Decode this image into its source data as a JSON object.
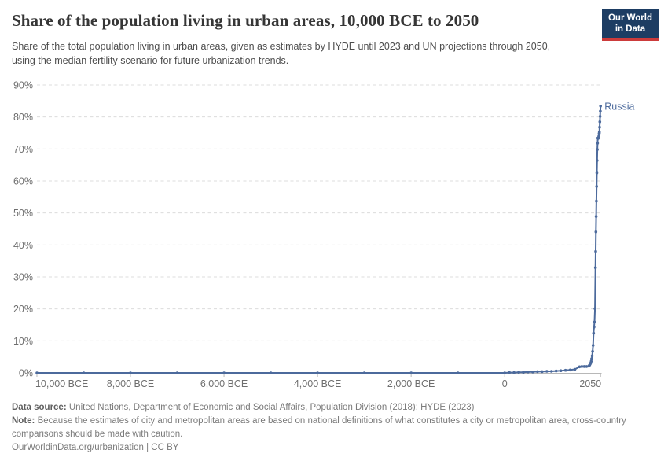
{
  "header": {
    "title": "Share of the population living in urban areas, 10,000 BCE to 2050",
    "subtitle": "Share of the total population living in urban areas, given as estimates by HYDE until 2023 and UN projections through 2050, using the median fertility scenario for future urbanization trends.",
    "logo": {
      "line1": "Our World",
      "line2": "in Data"
    }
  },
  "footer": {
    "source_label": "Data source:",
    "source_text": "United Nations, Department of Economic and Social Affairs, Population Division (2018); HYDE (2023)",
    "note_label": "Note:",
    "note_text": "Because the estimates of city and metropolitan areas are based on national definitions of what constitutes a city or metropolitan area, cross-country comparisons should be made with caution.",
    "license_line": "OurWorldinData.org/urbanization | CC BY"
  },
  "colors": {
    "line": "#4c6a9c",
    "title_color": "#363636",
    "subtitle_color": "#4e4e4e",
    "tick_label": "#6e6e6e",
    "grid": "#dcdcdc",
    "axis": "#b8b8b8",
    "footer_color": "#7b7b7b",
    "footer_bold_color": "#5f5f5f",
    "logo_bg": "#1d3d63",
    "logo_stripe": "#cc3b3b"
  },
  "chart_data": {
    "type": "line",
    "title": "Share of the population living in urban areas, 10,000 BCE to 2050",
    "xlabel": "",
    "ylabel": "",
    "xlim": [
      -10000,
      2050
    ],
    "ylim": [
      0,
      90
    ],
    "grid": true,
    "legend": "none",
    "y_ticks": [
      {
        "value": 0,
        "label": "0%"
      },
      {
        "value": 10,
        "label": "10%"
      },
      {
        "value": 20,
        "label": "20%"
      },
      {
        "value": 30,
        "label": "30%"
      },
      {
        "value": 40,
        "label": "40%"
      },
      {
        "value": 50,
        "label": "50%"
      },
      {
        "value": 60,
        "label": "60%"
      },
      {
        "value": 70,
        "label": "70%"
      },
      {
        "value": 80,
        "label": "80%"
      },
      {
        "value": 90,
        "label": "90%"
      }
    ],
    "x_ticks": [
      {
        "value": -10000,
        "label": "10,000 BCE",
        "align": "start"
      },
      {
        "value": -8000,
        "label": "8,000 BCE"
      },
      {
        "value": -6000,
        "label": "6,000 BCE"
      },
      {
        "value": -4000,
        "label": "4,000 BCE"
      },
      {
        "value": -2000,
        "label": "2,000 BCE"
      },
      {
        "value": 0,
        "label": "0"
      },
      {
        "value": 2050,
        "label": "2050",
        "dx": -13
      }
    ],
    "series": [
      {
        "name": "Russia",
        "points": [
          [
            -10000,
            0
          ],
          [
            -9000,
            0
          ],
          [
            -8000,
            0
          ],
          [
            -7000,
            0
          ],
          [
            -6000,
            0
          ],
          [
            -5000,
            0
          ],
          [
            -4000,
            0
          ],
          [
            -3000,
            0
          ],
          [
            -2000,
            0
          ],
          [
            -1000,
            0
          ],
          [
            0,
            0
          ],
          [
            100,
            0.1
          ],
          [
            200,
            0.1
          ],
          [
            300,
            0.2
          ],
          [
            400,
            0.2
          ],
          [
            500,
            0.3
          ],
          [
            600,
            0.3
          ],
          [
            700,
            0.4
          ],
          [
            800,
            0.4
          ],
          [
            900,
            0.5
          ],
          [
            1000,
            0.5
          ],
          [
            1100,
            0.6
          ],
          [
            1200,
            0.7
          ],
          [
            1300,
            0.8
          ],
          [
            1400,
            0.9
          ],
          [
            1500,
            1.1
          ],
          [
            1600,
            1.9
          ],
          [
            1650,
            2.0
          ],
          [
            1700,
            2.0
          ],
          [
            1750,
            2.0
          ],
          [
            1800,
            2.1
          ],
          [
            1810,
            2.3
          ],
          [
            1820,
            2.5
          ],
          [
            1830,
            2.8
          ],
          [
            1840,
            3.1
          ],
          [
            1850,
            3.6
          ],
          [
            1860,
            4.4
          ],
          [
            1870,
            5.3
          ],
          [
            1880,
            6.7
          ],
          [
            1890,
            8.6
          ],
          [
            1900,
            12.4
          ],
          [
            1910,
            14.3
          ],
          [
            1920,
            15.9
          ],
          [
            1930,
            20.1
          ],
          [
            1940,
            32.9
          ],
          [
            1945,
            38.0
          ],
          [
            1950,
            44.1
          ],
          [
            1955,
            48.9
          ],
          [
            1960,
            53.7
          ],
          [
            1965,
            58.3
          ],
          [
            1970,
            62.5
          ],
          [
            1975,
            66.4
          ],
          [
            1980,
            69.8
          ],
          [
            1985,
            71.8
          ],
          [
            1990,
            73.4
          ],
          [
            1995,
            73.4
          ],
          [
            2000,
            73.3
          ],
          [
            2005,
            73.4
          ],
          [
            2010,
            73.7
          ],
          [
            2015,
            74.1
          ],
          [
            2020,
            74.8
          ],
          [
            2023,
            75.0
          ],
          [
            2025,
            75.3
          ],
          [
            2030,
            76.8
          ],
          [
            2035,
            78.5
          ],
          [
            2040,
            80.2
          ],
          [
            2045,
            81.8
          ],
          [
            2050,
            83.4
          ]
        ]
      }
    ]
  }
}
